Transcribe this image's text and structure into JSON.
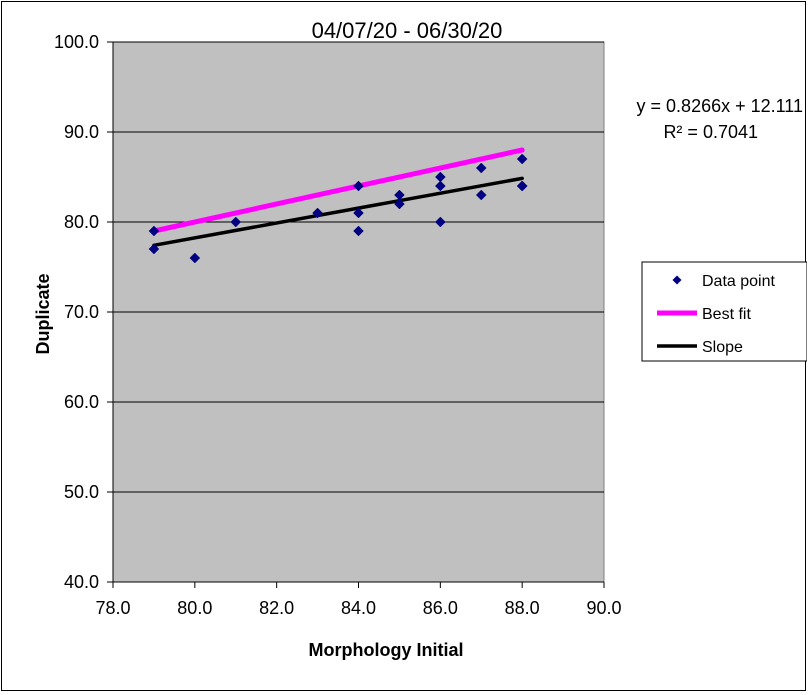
{
  "chart_data": {
    "type": "scatter",
    "title": "04/07/20 - 06/30/20",
    "xlabel": "Morphology Initial",
    "ylabel": "Duplicate",
    "xlim": [
      78.0,
      90.0
    ],
    "ylim": [
      40.0,
      100.0
    ],
    "x_ticks": [
      "78.0",
      "80.0",
      "82.0",
      "84.0",
      "86.0",
      "88.0",
      "90.0"
    ],
    "y_ticks": [
      "40.0",
      "50.0",
      "60.0",
      "70.0",
      "80.0",
      "90.0",
      "100.0"
    ],
    "x_tick_values": [
      78,
      80,
      82,
      84,
      86,
      88,
      90
    ],
    "y_tick_values": [
      40,
      50,
      60,
      70,
      80,
      90,
      100
    ],
    "grid": "horizontal",
    "plot_background": "#c0c0c0",
    "series": [
      {
        "name": "Data point",
        "kind": "scatter",
        "marker": "diamond",
        "color": "#000080",
        "points": [
          [
            79,
            79
          ],
          [
            79,
            77
          ],
          [
            80,
            76
          ],
          [
            81,
            80
          ],
          [
            83,
            81
          ],
          [
            84,
            84
          ],
          [
            84,
            81
          ],
          [
            84,
            79
          ],
          [
            85,
            83
          ],
          [
            85,
            82
          ],
          [
            86,
            85
          ],
          [
            86,
            84
          ],
          [
            86,
            80
          ],
          [
            87,
            86
          ],
          [
            87,
            83
          ],
          [
            88,
            87
          ],
          [
            88,
            84
          ],
          [
            88,
            84
          ]
        ]
      },
      {
        "name": "Best fit",
        "kind": "line",
        "color": "#ff00ff",
        "points": [
          [
            79,
            79.0
          ],
          [
            88,
            88.0
          ]
        ]
      },
      {
        "name": "Slope",
        "kind": "line",
        "color": "#000000",
        "points": [
          [
            79,
            77.41
          ],
          [
            88,
            84.85
          ]
        ]
      }
    ],
    "annotations": {
      "equation": "y = 0.8266x + 12.111",
      "r_squared": "R² = 0.7041"
    },
    "legend": {
      "placement": "right",
      "entries": [
        "Data point",
        "Best fit",
        "Slope"
      ]
    }
  }
}
